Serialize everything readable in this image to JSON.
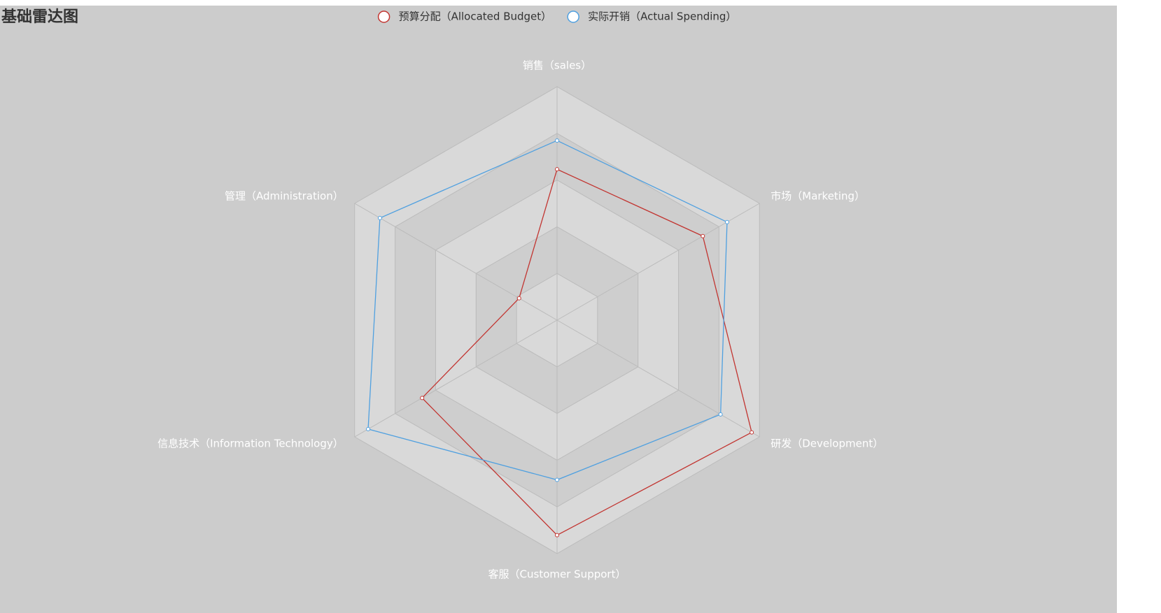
{
  "chart_data": {
    "type": "radar",
    "title": "基础雷达图",
    "indicators": [
      {
        "name": "销售（sales）",
        "max": 6500
      },
      {
        "name": "管理（Administration）",
        "max": 16000
      },
      {
        "name": "信息技术（Information Technology）",
        "max": 30000
      },
      {
        "name": "客服（Customer Support）",
        "max": 38000
      },
      {
        "name": "研发（Development）",
        "max": 52000
      },
      {
        "name": "市场（Marketing）",
        "max": 25000
      }
    ],
    "split_number": 5,
    "series": [
      {
        "name": "预算分配（Allocated Budget）",
        "color": "#c23531",
        "values": [
          4200,
          3000,
          20000,
          35000,
          50000,
          18000
        ]
      },
      {
        "name": "实际开销（Actual Spending）",
        "color": "#4fa0e0",
        "values": [
          5000,
          14000,
          28000,
          26000,
          42000,
          21000
        ]
      }
    ]
  }
}
